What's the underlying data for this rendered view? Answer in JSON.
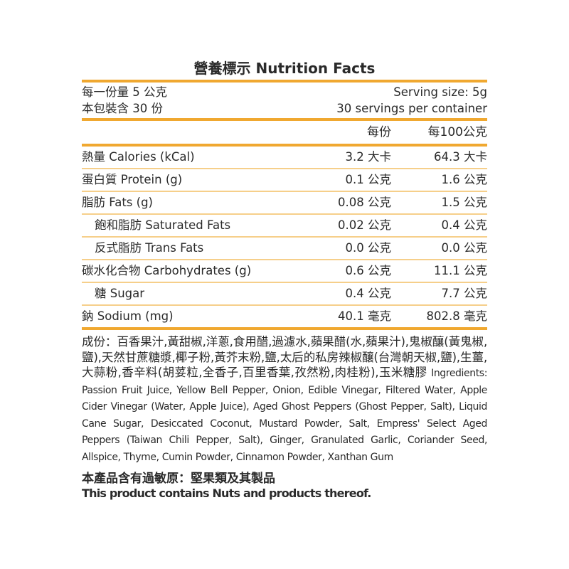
{
  "title": "營養標示 Nutrition Facts",
  "serving": {
    "size_zh": "每一份量 5 公克",
    "size_en": "Serving size: 5g",
    "count_zh": "本包裝含 30 份",
    "count_en": "30 servings per container"
  },
  "columns": {
    "per_serving": "每份",
    "per_100g": "每100公克"
  },
  "rows": [
    {
      "name": "熱量 Calories (kCal)",
      "per_serving": "3.2 大卡",
      "per_100g": "64.3 大卡"
    },
    {
      "name": "蛋白質 Protein (g)",
      "per_serving": "0.1 公克",
      "per_100g": "1.6 公克"
    },
    {
      "name": "脂肪 Fats (g)",
      "per_serving": "0.08 公克",
      "per_100g": "1.5 公克"
    },
    {
      "name": "飽和脂肪 Saturated Fats",
      "per_serving": "0.02 公克",
      "per_100g": "0.4 公克"
    },
    {
      "name": "反式脂肪 Trans Fats",
      "per_serving": "0.0 公克",
      "per_100g": "0.0 公克"
    },
    {
      "name": "碳水化合物 Carbohydrates (g)",
      "per_serving": "0.6 公克",
      "per_100g": "11.1 公克"
    },
    {
      "name": "糖 Sugar",
      "per_serving": "0.4 公克",
      "per_100g": "7.7 公克"
    },
    {
      "name": "鈉 Sodium (mg)",
      "per_serving": "40.1 毫克",
      "per_100g": "802.8 毫克"
    }
  ],
  "ingredients": {
    "zh": "成份：百香果汁,黃甜椒,洋蔥,食用醋,過濾水,蘋果醋(水,蘋果汁),鬼椒釀(黃鬼椒,鹽),天然甘蔗糖漿,椰子粉,黃芥末粉,鹽,太后的私房辣椒釀(台灣朝天椒,鹽),生薑,大蒜粉,香辛料(胡荽粒,全香子,百里香葉,孜然粉,肉桂粉),玉米糖膠",
    "en": "Ingredients: Passion Fruit Juice, Yellow Bell Pepper, Onion, Edible Vinegar, Filtered Water, Apple Cider Vinegar (Water, Apple Juice), Aged Ghost Peppers (Ghost Pepper, Salt), Liquid Cane Sugar, Desiccated Coconut, Mustard Powder, Salt, Empress' Select Aged Peppers (Taiwan Chili Pepper, Salt), Ginger, Granulated Garlic, Coriander Seed, Allspice, Thyme, Cumin Powder, Cinnamon Powder, Xanthan Gum"
  },
  "allergen": {
    "zh": "本產品含有過敏原：堅果類及其製品",
    "en": "This product contains Nuts and products thereof."
  },
  "colors": {
    "accent": "#f0a830",
    "divider": "#f6cf8a"
  }
}
